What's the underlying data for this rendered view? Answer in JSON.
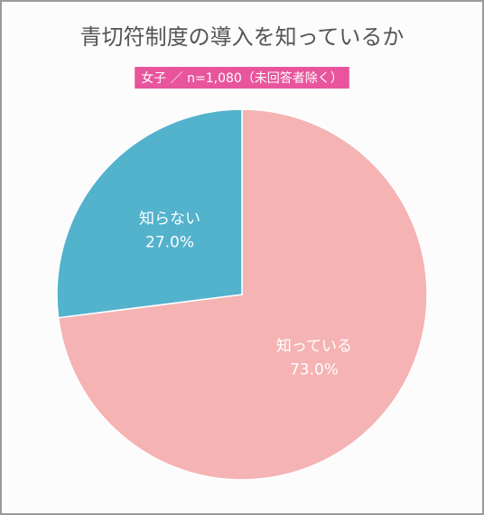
{
  "chart_data": {
    "type": "pie",
    "title": "青切符制度の導入を知っているか",
    "subtitle": "女子 ／ n=1,080（未回答者除く）",
    "categories": [
      "知っている",
      "知らない"
    ],
    "values": [
      73.0,
      27.0
    ],
    "value_labels": [
      "73.0%",
      "27.0%"
    ],
    "colors": [
      "#f5b3b4",
      "#53b2cc"
    ],
    "subtitle_color": "#e8559d"
  }
}
